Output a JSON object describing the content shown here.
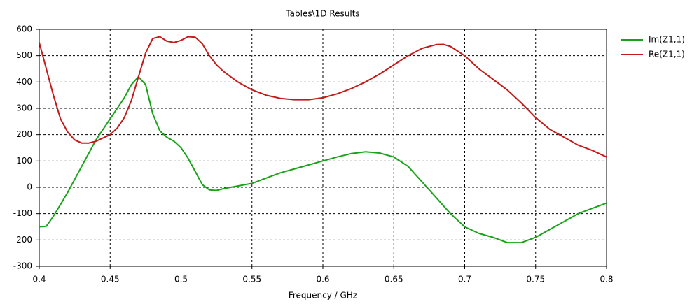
{
  "chart_data": {
    "type": "line",
    "title": "Tables\\1D Results",
    "x_label": "Frequency / GHz",
    "x": [
      0.4,
      0.405,
      0.41,
      0.415,
      0.42,
      0.425,
      0.43,
      0.435,
      0.44,
      0.45,
      0.455,
      0.46,
      0.465,
      0.47,
      0.475,
      0.48,
      0.485,
      0.49,
      0.495,
      0.5,
      0.505,
      0.51,
      0.515,
      0.52,
      0.525,
      0.53,
      0.54,
      0.55,
      0.56,
      0.57,
      0.58,
      0.59,
      0.6,
      0.61,
      0.62,
      0.63,
      0.64,
      0.65,
      0.66,
      0.67,
      0.68,
      0.685,
      0.69,
      0.7,
      0.71,
      0.72,
      0.73,
      0.74,
      0.75,
      0.76,
      0.77,
      0.78,
      0.79,
      0.8
    ],
    "series": [
      {
        "name": "Im(Z1,1)",
        "color": "#1aa31a",
        "values": [
          -150,
          -148,
          -110,
          -65,
          -20,
          30,
          80,
          130,
          180,
          260,
          300,
          340,
          390,
          420,
          390,
          280,
          215,
          190,
          175,
          150,
          110,
          60,
          10,
          -10,
          -12,
          -5,
          5,
          15,
          35,
          55,
          70,
          85,
          100,
          115,
          128,
          135,
          130,
          115,
          80,
          20,
          -40,
          -70,
          -100,
          -150,
          -175,
          -190,
          -210,
          -210,
          -190,
          -160,
          -130,
          -100,
          -80,
          -60
        ]
      },
      {
        "name": "Re(Z1,1)",
        "color": "#c41a1a",
        "values": [
          550,
          450,
          350,
          260,
          210,
          180,
          168,
          168,
          175,
          200,
          225,
          265,
          330,
          420,
          510,
          565,
          572,
          555,
          550,
          558,
          572,
          570,
          545,
          500,
          465,
          440,
          400,
          370,
          350,
          338,
          333,
          333,
          340,
          355,
          375,
          400,
          430,
          465,
          500,
          528,
          542,
          543,
          535,
          500,
          450,
          410,
          370,
          320,
          265,
          220,
          190,
          160,
          140,
          115
        ]
      }
    ],
    "xlim": [
      0.4,
      0.8
    ],
    "xticks": [
      0.4,
      0.45,
      0.5,
      0.55,
      0.6,
      0.65,
      0.7,
      0.75,
      0.8
    ],
    "ylim": [
      -300,
      600
    ],
    "yticks": [
      -300,
      -200,
      -100,
      0,
      100,
      200,
      300,
      400,
      500,
      600
    ],
    "grid": true,
    "legend": "right"
  }
}
